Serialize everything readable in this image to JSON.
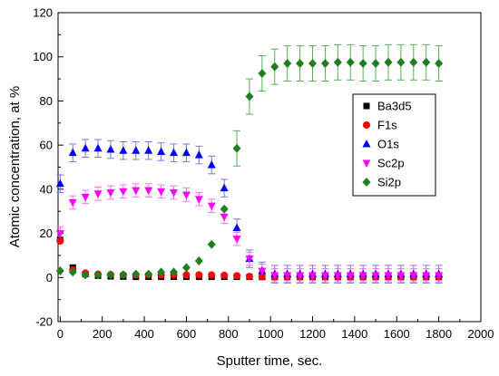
{
  "chart_data": {
    "type": "scatter",
    "title": "",
    "xlabel": "Sputter time, sec.",
    "ylabel": "Atomic concentration, at %",
    "xlim": [
      -10,
      2000
    ],
    "ylim": [
      -20,
      120
    ],
    "xticks": [
      0,
      200,
      400,
      600,
      800,
      1000,
      1200,
      1400,
      1600,
      1800,
      2000
    ],
    "yticks": [
      -20,
      0,
      20,
      40,
      60,
      80,
      100,
      120
    ],
    "grid": false,
    "legend_position": "center-right",
    "x": [
      0,
      60,
      120,
      180,
      240,
      300,
      360,
      420,
      480,
      540,
      600,
      660,
      720,
      780,
      840,
      900,
      960,
      1020,
      1080,
      1140,
      1200,
      1260,
      1320,
      1380,
      1440,
      1500,
      1560,
      1620,
      1680,
      1740,
      1800
    ],
    "series": [
      {
        "name": "Ba3d5",
        "marker": "square",
        "color": "#000000",
        "values": [
          17,
          4.5,
          1.5,
          0.8,
          0.5,
          0.4,
          0.3,
          0.3,
          0.3,
          0.3,
          0.3,
          0.3,
          0.3,
          0.3,
          0.3,
          0.3,
          0.3,
          0.2,
          0.2,
          0.2,
          0.2,
          0.2,
          0.2,
          0.2,
          0.2,
          0.2,
          0.2,
          0.2,
          0.2,
          0.2,
          0.2
        ]
      },
      {
        "name": "F1s",
        "marker": "circle",
        "color": "#ff0000",
        "values": [
          16.5,
          3.5,
          2,
          1.5,
          1.3,
          1.2,
          1.2,
          1.2,
          1.2,
          1.2,
          1.2,
          1.2,
          1.2,
          1,
          0.8,
          0.5,
          0.3,
          0.3,
          0.3,
          0.3,
          0.3,
          0.3,
          0.3,
          0.3,
          0.3,
          0.3,
          0.3,
          0.3,
          0.3,
          0.3,
          0.3
        ]
      },
      {
        "name": "O1s",
        "marker": "triangle-up",
        "color": "#0000ff",
        "error_color": "#7777ee",
        "error": 4,
        "values": [
          42.5,
          56.5,
          58.5,
          58.5,
          58,
          57.5,
          57.5,
          57.5,
          57,
          56.5,
          56.5,
          55.5,
          51,
          40.5,
          22.5,
          8.5,
          3,
          1.5,
          1.5,
          1.5,
          1.5,
          1.5,
          1.5,
          1.5,
          1.5,
          1.5,
          1.5,
          1.5,
          1.5,
          1.5,
          1.5
        ]
      },
      {
        "name": "Sc2p",
        "marker": "triangle-down",
        "color": "#ff00ff",
        "error_color": "#ee77ee",
        "error": 3,
        "values": [
          20,
          34,
          36.5,
          38,
          38.5,
          39,
          39.5,
          39.5,
          39,
          38.5,
          37.5,
          35.5,
          32.5,
          27.5,
          17.5,
          8.5,
          3,
          1,
          1,
          1,
          1,
          1,
          1,
          1,
          1,
          1,
          1,
          1,
          1,
          1,
          1
        ]
      },
      {
        "name": "Si2p",
        "marker": "diamond",
        "color": "#1f7f1f",
        "error_color": "#55b055",
        "error": 8,
        "error_from_index": 14,
        "values": [
          3,
          2.5,
          1.2,
          1.2,
          1.2,
          1.2,
          1.5,
          1.5,
          2.5,
          2.5,
          4.5,
          7.5,
          15,
          31,
          58.5,
          82,
          92.5,
          95.5,
          97,
          97,
          97,
          97,
          97.5,
          97.5,
          97,
          97,
          97.5,
          97.5,
          97.5,
          97.5,
          97
        ]
      }
    ]
  }
}
